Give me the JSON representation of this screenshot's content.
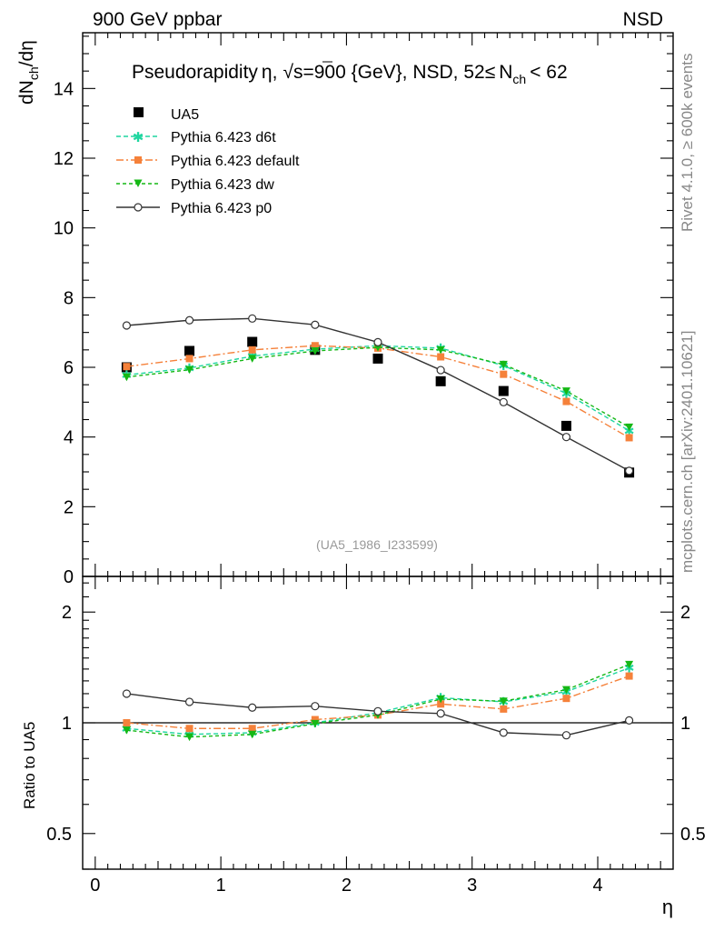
{
  "header": {
    "left": "900 GeV ppbar",
    "right": "NSD"
  },
  "title": {
    "prefix": "Pseudorapidity",
    "eta": "η",
    "comma": ",",
    "sqrt_s": "s",
    "rest": "=900 {GeV}, NSD, 52",
    "le": "≤",
    "nch_N": "N",
    "nch_sub": "ch",
    "tail": "< 62"
  },
  "side_labels": {
    "rivet": "Rivet 4.1.0, ≥ 600k events",
    "mcplots": "mcplots.cern.ch [arXiv:2401.10621]"
  },
  "watermark": "(UA5_1986_I233599)",
  "ylabel_top": {
    "d1": "dN",
    "sub1": "ch",
    "slash": "/d",
    "eta": "η"
  },
  "ylabel_bottom": "Ratio to UA5",
  "xlabel": "η",
  "colors": {
    "ua5": "#000000",
    "d6t": "#1fd6a0",
    "default": "#f5813a",
    "dw": "#15b815",
    "p0": "#333333"
  },
  "chart_data": [
    {
      "type": "line",
      "title": "Pseudorapidity η, √s=900 {GeV}, NSD, 52≤ Nch < 62",
      "xlabel": "η",
      "ylabel": "dNch/dη",
      "xlim": [
        -0.1,
        4.6
      ],
      "ylim": [
        0,
        15.6
      ],
      "xticks": [
        "0",
        "1",
        "2",
        "3",
        "4"
      ],
      "yticks": [
        "0",
        "2",
        "4",
        "6",
        "8",
        "10",
        "12",
        "14"
      ],
      "x": [
        0.25,
        0.75,
        1.25,
        1.75,
        2.25,
        2.75,
        3.25,
        3.75,
        4.25
      ],
      "series": [
        {
          "name": "UA5",
          "key": "ua5",
          "marker": "square",
          "values": [
            6.0,
            6.47,
            6.73,
            6.5,
            6.25,
            5.6,
            5.32,
            4.32,
            2.98
          ]
        },
        {
          "name": "Pythia 6.423 d6t",
          "key": "d6t",
          "marker": "star",
          "values": [
            5.78,
            5.98,
            6.32,
            6.52,
            6.62,
            6.55,
            6.05,
            5.25,
            4.18
          ]
        },
        {
          "name": "Pythia 6.423 default",
          "key": "default",
          "marker": "square-small",
          "values": [
            6.02,
            6.25,
            6.5,
            6.62,
            6.55,
            6.3,
            5.8,
            5.02,
            3.98
          ]
        },
        {
          "name": "Pythia 6.423 dw",
          "key": "dw",
          "marker": "triangle-down",
          "values": [
            5.72,
            5.93,
            6.25,
            6.47,
            6.57,
            6.5,
            6.08,
            5.32,
            4.28
          ]
        },
        {
          "name": "Pythia 6.423 p0",
          "key": "p0",
          "marker": "circle-open",
          "values": [
            7.2,
            7.35,
            7.4,
            7.22,
            6.72,
            5.92,
            5.0,
            4.0,
            3.03
          ]
        }
      ]
    },
    {
      "type": "line",
      "xlabel": "η",
      "ylabel": "Ratio to UA5",
      "yscale": "log",
      "xlim": [
        -0.1,
        4.6
      ],
      "ylim": [
        0.4,
        2.5
      ],
      "xticks": [
        "0",
        "1",
        "2",
        "3",
        "4"
      ],
      "yticks": [
        "0.5",
        "1",
        "2"
      ],
      "reference": 1,
      "x": [
        0.25,
        0.75,
        1.25,
        1.75,
        2.25,
        2.75,
        3.25,
        3.75,
        4.25
      ],
      "series": [
        {
          "name": "Pythia 6.423 d6t",
          "key": "d6t",
          "marker": "star",
          "values": [
            0.965,
            0.93,
            0.94,
            1.0,
            1.065,
            1.17,
            1.14,
            1.215,
            1.41
          ]
        },
        {
          "name": "Pythia 6.423 default",
          "key": "default",
          "marker": "square-small",
          "values": [
            1.0,
            0.965,
            0.965,
            1.02,
            1.05,
            1.125,
            1.09,
            1.165,
            1.34
          ]
        },
        {
          "name": "Pythia 6.423 dw",
          "key": "dw",
          "marker": "triangle-down",
          "values": [
            0.955,
            0.915,
            0.93,
            0.995,
            1.05,
            1.16,
            1.145,
            1.23,
            1.44
          ]
        },
        {
          "name": "Pythia 6.423 p0",
          "key": "p0",
          "marker": "circle-open",
          "values": [
            1.2,
            1.14,
            1.1,
            1.11,
            1.075,
            1.06,
            0.94,
            0.925,
            1.015
          ]
        }
      ]
    }
  ]
}
